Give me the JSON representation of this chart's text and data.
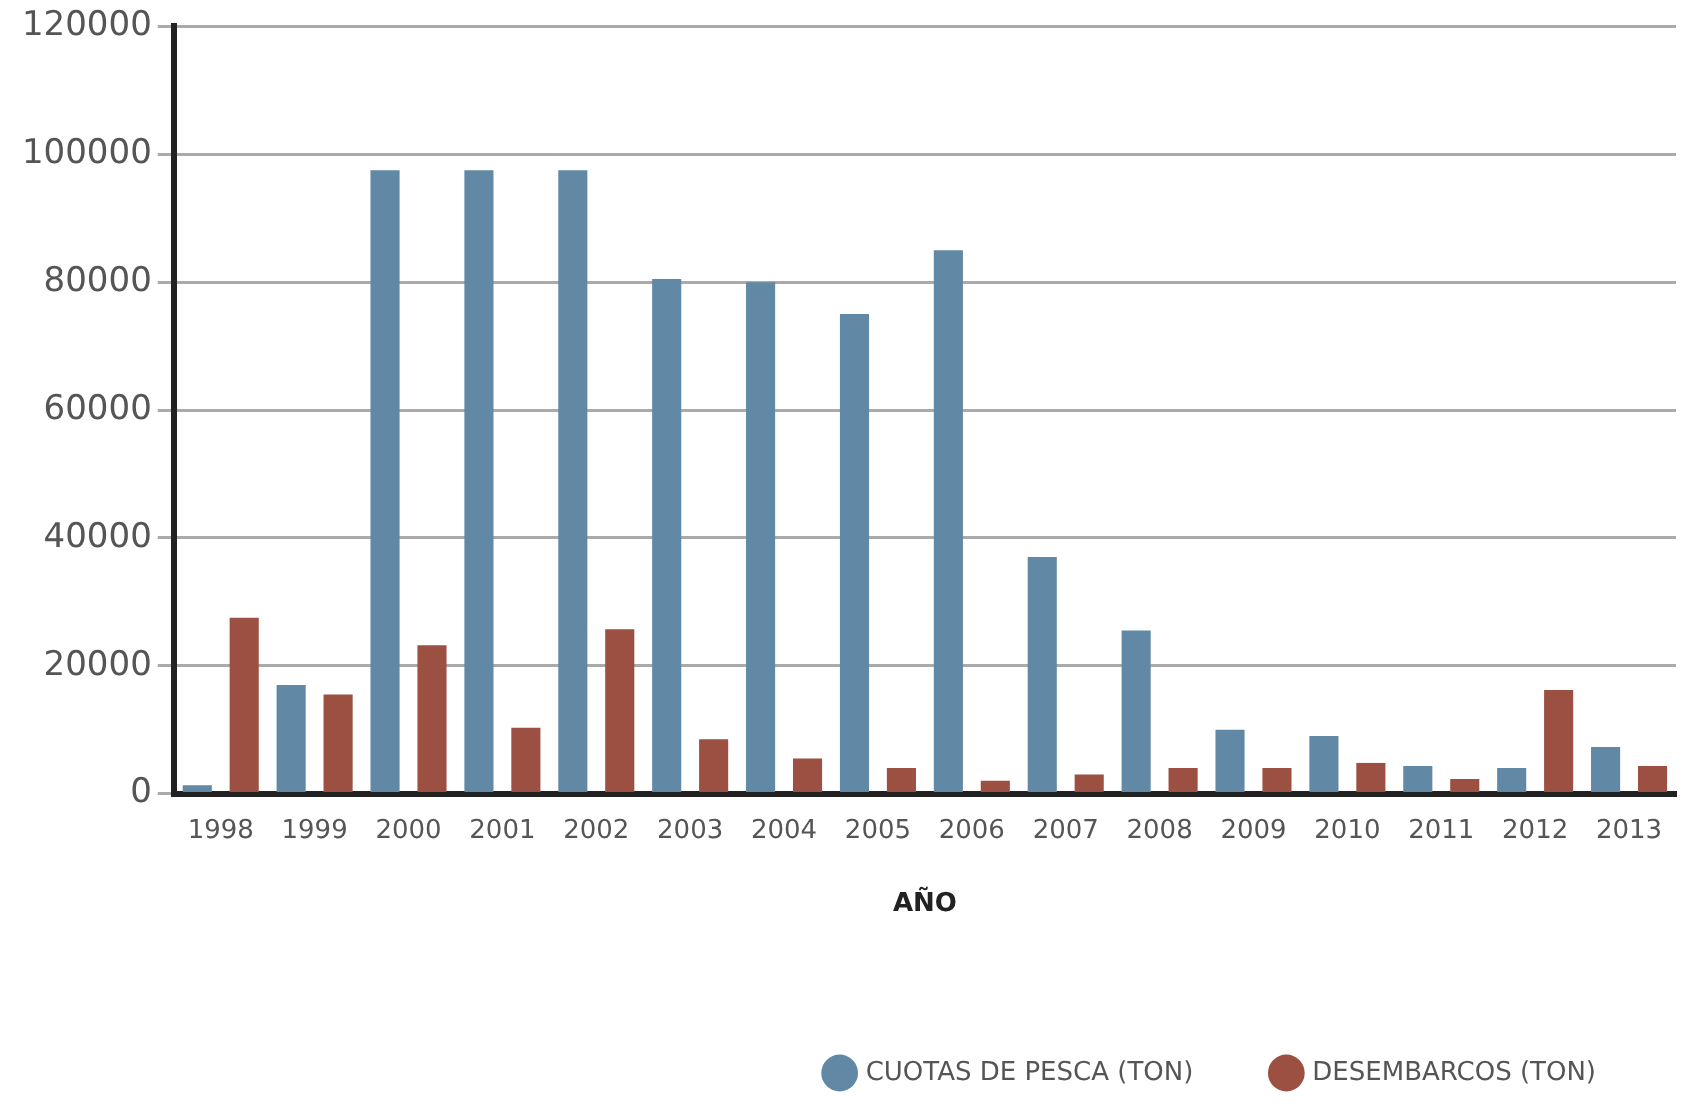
{
  "chart_data": {
    "type": "bar",
    "xlabel": "AÑO",
    "categories": [
      "1998",
      "1999",
      "2000",
      "2001",
      "2002",
      "2003",
      "2004",
      "2005",
      "2006",
      "2007",
      "2008",
      "2009",
      "2010",
      "2011",
      "2012",
      "2013"
    ],
    "series": [
      {
        "name": "CUOTAS DE PESCA (TON)",
        "color": "#6189a5",
        "values": [
          1300,
          17000,
          97500,
          97500,
          97500,
          80500,
          80000,
          75000,
          85000,
          37000,
          25500,
          10000,
          9000,
          4300,
          4000,
          7300
        ]
      },
      {
        "name": "DESEMBARCOS (TON)",
        "color": "#9b5042",
        "values": [
          27500,
          15500,
          23200,
          10300,
          25700,
          8500,
          5500,
          4000,
          2000,
          3000,
          4000,
          4000,
          4800,
          2300,
          16200,
          4300
        ]
      }
    ],
    "ylim": [
      0,
      120000
    ],
    "yticks": [
      0,
      20000,
      40000,
      60000,
      80000,
      100000,
      120000
    ],
    "grid": "y",
    "legend": "bottom right"
  }
}
